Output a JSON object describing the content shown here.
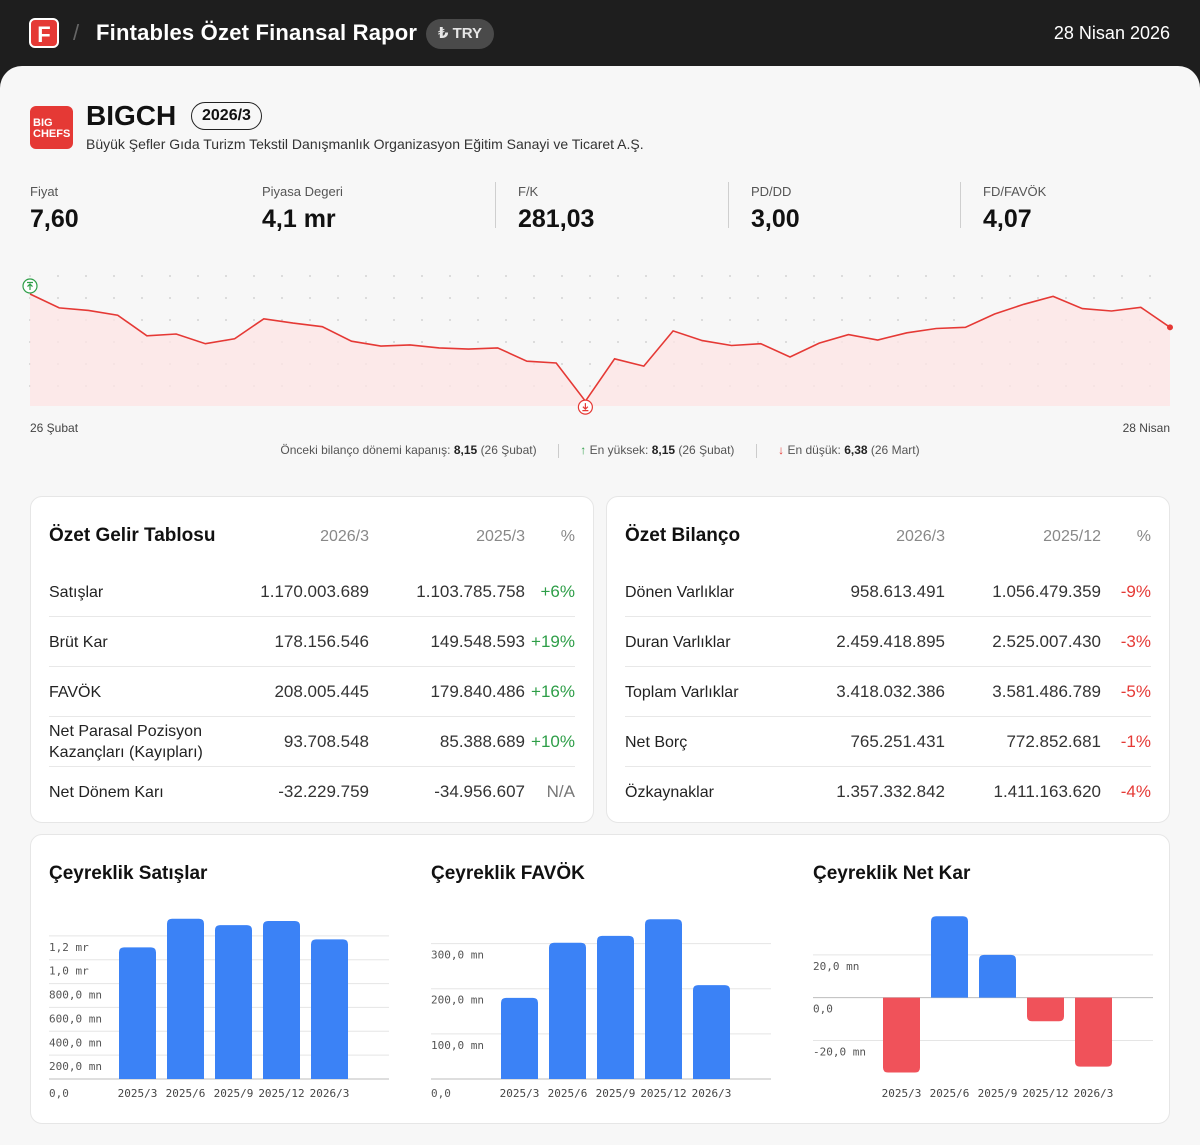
{
  "header": {
    "logo_letter": "F",
    "title": "Fintables Özet Finansal Rapor",
    "currency": "₺ TRY",
    "date": "28 Nisan 2026"
  },
  "company": {
    "logo_line1": "BIG",
    "logo_line2": "CHEFS",
    "ticker": "BIGCH",
    "period": "2026/3",
    "name": "Büyük Şefler Gıda Turizm Tekstil Danışmanlık Organizasyon Eğitim Sanayi ve Ticaret A.Ş."
  },
  "metrics": [
    {
      "label": "Fiyat",
      "value": "7,60"
    },
    {
      "label": "Piyasa Degeri",
      "value": "4,1 mr"
    },
    {
      "label": "F/K",
      "value": "281,03"
    },
    {
      "label": "PD/DD",
      "value": "3,00"
    },
    {
      "label": "FD/FAVÖK",
      "value": "4,07"
    }
  ],
  "price_chart": {
    "start_label": "26 Şubat",
    "end_label": "28 Nisan",
    "stats": {
      "prev_close_label": "Önceki bilanço dönemi kapanış:",
      "prev_close_value": "8,15",
      "prev_close_date": "(26 Şubat)",
      "high_label": "En yüksek:",
      "high_value": "8,15",
      "high_date": "(26 Şubat)",
      "low_label": "En düşük:",
      "low_value": "6,38",
      "low_date": "(26 Mart)"
    },
    "colors": {
      "line": "#e53935",
      "fill": "#fde5e5",
      "up": "#2e9e48",
      "down": "#e53935"
    }
  },
  "income": {
    "title": "Özet Gelir Tablosu",
    "col1": "2026/3",
    "col2": "2025/3",
    "col3": "%",
    "rows": [
      {
        "label": "Satışlar",
        "v1": "1.170.003.689",
        "v2": "1.103.785.758",
        "pct": "+6%",
        "dir": "pos"
      },
      {
        "label": "Brüt Kar",
        "v1": "178.156.546",
        "v2": "149.548.593",
        "pct": "+19%",
        "dir": "pos"
      },
      {
        "label": "FAVÖK",
        "v1": "208.005.445",
        "v2": "179.840.486",
        "pct": "+16%",
        "dir": "pos"
      },
      {
        "label": "Net Parasal Pozisyon Kazançları (Kayıpları)",
        "v1": "93.708.548",
        "v2": "85.388.689",
        "pct": "+10%",
        "dir": "pos"
      },
      {
        "label": "Net Dönem Karı",
        "v1": "-32.229.759",
        "v2": "-34.956.607",
        "pct": "N/A",
        "dir": "na"
      }
    ]
  },
  "balance": {
    "title": "Özet Bilanço",
    "col1": "2026/3",
    "col2": "2025/12",
    "col3": "%",
    "rows": [
      {
        "label": "Dönen Varlıklar",
        "v1": "958.613.491",
        "v2": "1.056.479.359",
        "pct": "-9%",
        "dir": "neg"
      },
      {
        "label": "Duran Varlıklar",
        "v1": "2.459.418.895",
        "v2": "2.525.007.430",
        "pct": "-3%",
        "dir": "neg"
      },
      {
        "label": "Toplam Varlıklar",
        "v1": "3.418.032.386",
        "v2": "3.581.486.789",
        "pct": "-5%",
        "dir": "neg"
      },
      {
        "label": "Net Borç",
        "v1": "765.251.431",
        "v2": "772.852.681",
        "pct": "-1%",
        "dir": "neg"
      },
      {
        "label": "Özkaynaklar",
        "v1": "1.357.332.842",
        "v2": "1.411.163.620",
        "pct": "-4%",
        "dir": "neg"
      }
    ]
  },
  "chart_titles": {
    "sales": "Çeyreklik Satışlar",
    "ebitda": "Çeyreklik FAVÖK",
    "net": "Çeyreklik Net Kar"
  },
  "chart_data": [
    {
      "type": "line",
      "x_start": "26 Şubat",
      "x_end": "28 Nisan",
      "values": [
        8.15,
        7.92,
        7.88,
        7.8,
        7.46,
        7.49,
        7.33,
        7.41,
        7.74,
        7.67,
        7.61,
        7.37,
        7.29,
        7.31,
        7.26,
        7.24,
        7.26,
        7.04,
        7.01,
        6.38,
        7.08,
        6.96,
        7.54,
        7.38,
        7.3,
        7.33,
        7.11,
        7.34,
        7.48,
        7.39,
        7.51,
        7.58,
        7.6,
        7.82,
        7.98,
        8.11,
        7.91,
        7.87,
        7.93,
        7.6
      ],
      "high": 8.15,
      "low": 6.38,
      "grid": "dotted"
    },
    {
      "type": "bar",
      "title": "Çeyreklik Satışlar",
      "categories": [
        "2025/3",
        "2025/6",
        "2025/9",
        "2025/12",
        "2026/3"
      ],
      "values": [
        1103785758,
        1343000000,
        1290000000,
        1325000000,
        1170003689
      ],
      "y_ticks": [
        0,
        200000000,
        400000000,
        600000000,
        800000000,
        1000000000,
        1200000000
      ],
      "y_tick_labels": [
        "0,0",
        "200,0 mn",
        "400,0 mn",
        "600,0 mn",
        "800,0 mn",
        "1,0 mr",
        "1,2 mr"
      ],
      "ylim": [
        0,
        1400000000
      ],
      "color": "#3b82f6"
    },
    {
      "type": "bar",
      "title": "Çeyreklik FAVÖK",
      "categories": [
        "2025/3",
        "2025/6",
        "2025/9",
        "2025/12",
        "2026/3"
      ],
      "values": [
        179840486,
        302000000,
        317000000,
        354000000,
        208005445
      ],
      "y_ticks": [
        0,
        100000000,
        200000000,
        300000000
      ],
      "y_tick_labels": [
        "0,0",
        "100,0 mn",
        "200,0 mn",
        "300,0 mn"
      ],
      "ylim": [
        0,
        370000000
      ],
      "color": "#3b82f6"
    },
    {
      "type": "bar",
      "title": "Çeyreklik Net Kar",
      "categories": [
        "2025/3",
        "2025/6",
        "2025/9",
        "2025/12",
        "2026/3"
      ],
      "values": [
        -34956607,
        38000000,
        20000000,
        -11000000,
        -32229759
      ],
      "y_ticks": [
        -20000000,
        0,
        20000000
      ],
      "y_tick_labels": [
        "-20,0 mn",
        "0,0",
        "20,0 mn"
      ],
      "ylim": [
        -38000000,
        40000000
      ],
      "pos_color": "#3b82f6",
      "neg_color": "#f0525a"
    }
  ]
}
